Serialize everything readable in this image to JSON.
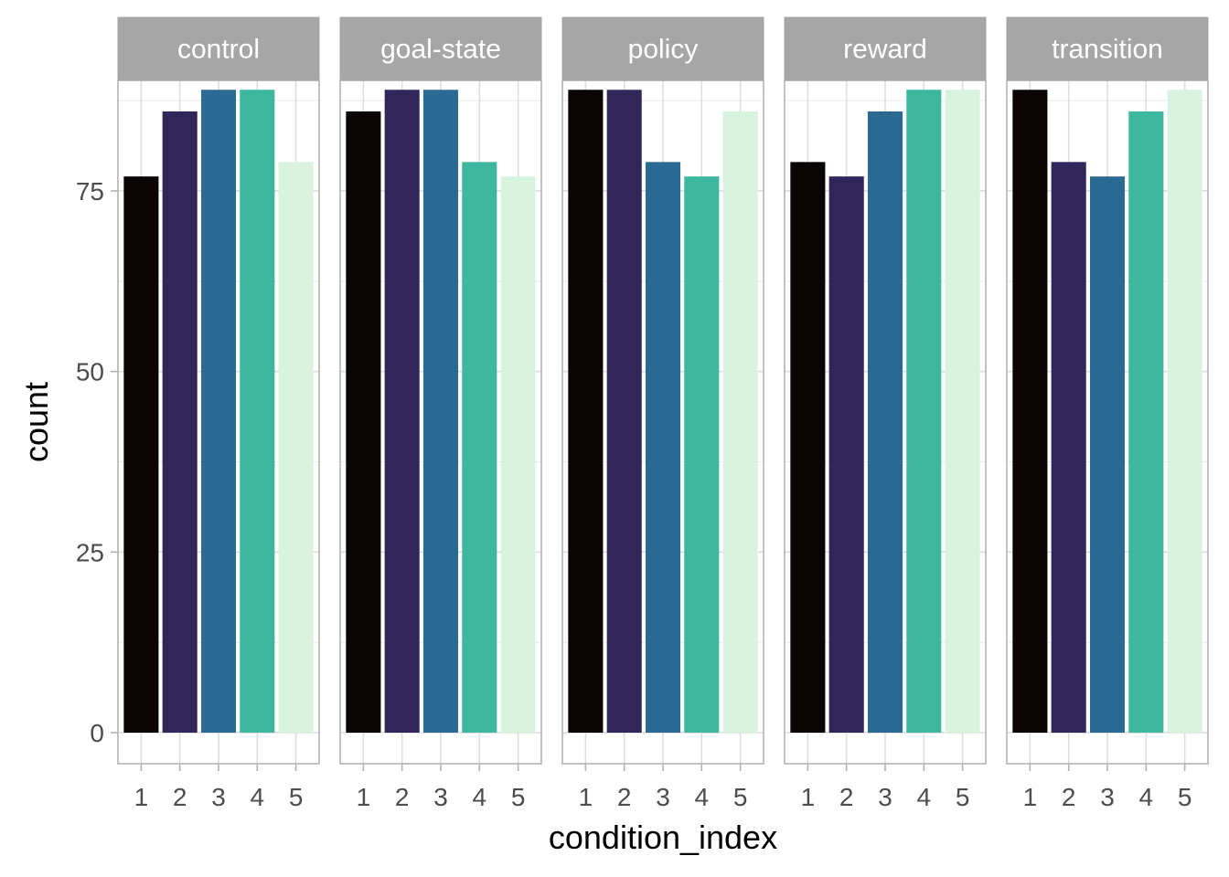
{
  "chart_data": {
    "type": "bar",
    "xlabel": "condition_index",
    "ylabel": "count",
    "ylim": [
      -4.3,
      90.3
    ],
    "yticks": [
      0,
      25,
      50,
      75
    ],
    "categories": [
      "1",
      "2",
      "3",
      "4",
      "5"
    ],
    "colors": [
      "#0b0405",
      "#312659",
      "#2b6a93",
      "#3db79e",
      "#d8f4df"
    ],
    "grid": true,
    "legend": "none",
    "facets": [
      {
        "name": "control",
        "values": [
          77,
          86,
          89,
          89,
          79
        ]
      },
      {
        "name": "goal-state",
        "values": [
          86,
          89,
          89,
          79,
          77
        ]
      },
      {
        "name": "policy",
        "values": [
          89,
          89,
          79,
          77,
          86
        ]
      },
      {
        "name": "reward",
        "values": [
          79,
          77,
          86,
          89,
          89
        ]
      },
      {
        "name": "transition",
        "values": [
          89,
          79,
          77,
          86,
          89
        ]
      }
    ]
  }
}
